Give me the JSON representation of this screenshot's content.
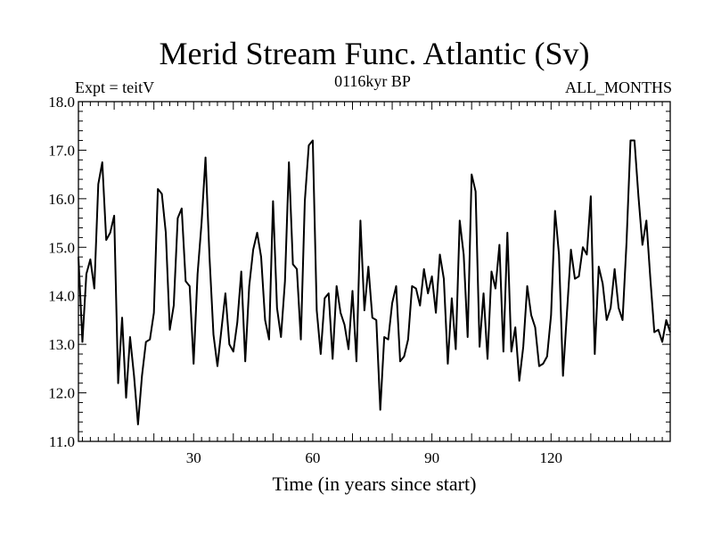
{
  "chart_data": {
    "type": "line",
    "title": "Merid Stream Func. Atlantic (Sv)",
    "subtitle_left": "Expt = teitV",
    "subtitle_center": "0116kyr BP",
    "subtitle_right": "ALL_MONTHS",
    "xlabel": "Time (in years since start)",
    "ylabel": "",
    "xlim": [
      1,
      150
    ],
    "ylim": [
      11.0,
      18.0
    ],
    "x_ticks": [
      30,
      60,
      90,
      120
    ],
    "x_tick_labels": [
      "30",
      "60",
      "90",
      "120"
    ],
    "y_ticks": [
      11,
      12,
      13,
      14,
      15,
      16,
      17,
      18
    ],
    "y_tick_labels": [
      "11.0",
      "12.0",
      "13.0",
      "14.0",
      "15.0",
      "16.0",
      "17.0",
      "18.0"
    ],
    "grid": false,
    "series": [
      {
        "name": "Merid Stream Func. Atlantic",
        "color": "#000000",
        "x": [
          1,
          2,
          3,
          4,
          5,
          6,
          7,
          8,
          9,
          10,
          11,
          12,
          13,
          14,
          15,
          16,
          17,
          18,
          19,
          20,
          21,
          22,
          23,
          24,
          25,
          26,
          27,
          28,
          29,
          30,
          31,
          32,
          33,
          34,
          35,
          36,
          37,
          38,
          39,
          40,
          41,
          42,
          43,
          44,
          45,
          46,
          47,
          48,
          49,
          50,
          51,
          52,
          53,
          54,
          55,
          56,
          57,
          58,
          59,
          60,
          61,
          62,
          63,
          64,
          65,
          66,
          67,
          68,
          69,
          70,
          71,
          72,
          73,
          74,
          75,
          76,
          77,
          78,
          79,
          80,
          81,
          82,
          83,
          84,
          85,
          86,
          87,
          88,
          89,
          90,
          91,
          92,
          93,
          94,
          95,
          96,
          97,
          98,
          99,
          100,
          101,
          102,
          103,
          104,
          105,
          106,
          107,
          108,
          109,
          110,
          111,
          112,
          113,
          114,
          115,
          116,
          117,
          118,
          119,
          120,
          121,
          122,
          123,
          124,
          125,
          126,
          127,
          128,
          129,
          130,
          131,
          132,
          133,
          134,
          135,
          136,
          137,
          138,
          139,
          140,
          141,
          142,
          143,
          144,
          145,
          146,
          147,
          148,
          149,
          150
        ],
        "values": [
          14.8,
          13.05,
          14.45,
          14.75,
          14.15,
          16.3,
          16.75,
          15.15,
          15.3,
          15.65,
          12.2,
          13.55,
          11.9,
          13.15,
          12.35,
          11.35,
          12.35,
          13.05,
          13.1,
          13.65,
          16.2,
          16.1,
          15.3,
          13.3,
          13.8,
          15.6,
          15.8,
          14.3,
          14.2,
          12.6,
          14.45,
          15.5,
          16.85,
          14.8,
          13.2,
          12.55,
          13.3,
          14.05,
          13.0,
          12.85,
          13.45,
          14.5,
          12.65,
          14.2,
          14.95,
          15.3,
          14.8,
          13.5,
          13.1,
          15.95,
          13.75,
          13.15,
          14.3,
          16.75,
          14.65,
          14.55,
          13.1,
          15.95,
          17.1,
          17.2,
          13.7,
          12.8,
          13.95,
          14.05,
          12.7,
          14.2,
          13.65,
          13.4,
          12.9,
          14.1,
          12.65,
          15.55,
          13.7,
          14.6,
          13.55,
          13.5,
          11.65,
          13.15,
          13.1,
          13.85,
          14.2,
          12.65,
          12.75,
          13.1,
          14.2,
          14.15,
          13.8,
          14.55,
          14.05,
          14.4,
          13.65,
          14.85,
          14.35,
          12.6,
          13.95,
          12.9,
          15.55,
          14.85,
          13.15,
          16.5,
          16.15,
          12.95,
          14.05,
          12.7,
          14.5,
          14.15,
          15.05,
          12.85,
          15.3,
          12.85,
          13.35,
          12.25,
          12.95,
          14.2,
          13.6,
          13.35,
          12.55,
          12.6,
          12.75,
          13.6,
          15.75,
          14.85,
          12.35,
          13.65,
          14.95,
          14.35,
          14.4,
          15.0,
          14.85,
          16.05,
          12.8,
          14.6,
          14.25,
          13.5,
          13.75,
          14.55,
          13.75,
          13.5,
          15.1,
          17.2,
          17.2,
          16.05,
          15.05,
          15.55,
          14.35,
          13.25,
          13.3,
          13.05,
          13.5,
          13.25
        ]
      }
    ]
  }
}
